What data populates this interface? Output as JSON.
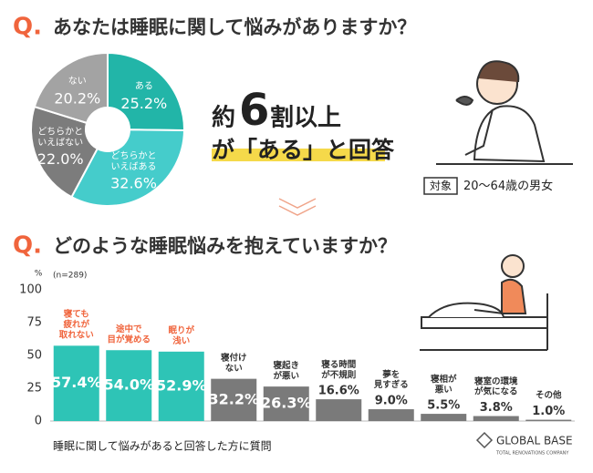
{
  "question1": {
    "mark": "Q.",
    "text": "あなたは睡眠に関して悩みがありますか？"
  },
  "headline": {
    "prefix": "約",
    "number": "6",
    "suffix": "割以上",
    "line2": "が「ある」と回答"
  },
  "target": {
    "tag": "対象",
    "text": "20～64歳の男女"
  },
  "question2": {
    "mark": "Q.",
    "text": "どのような睡眠悩みを抱えていますか？"
  },
  "chart_data": [
    {
      "type": "pie",
      "categories": [
        "ある",
        "どちらかと\nいえばある",
        "どちらかと\nいえばない",
        "ない"
      ],
      "values": [
        25.2,
        32.6,
        22.0,
        20.2
      ],
      "value_labels": [
        "25.2%",
        "32.6%",
        "22.0%",
        "20.2%"
      ],
      "colors": [
        "#22b5a8",
        "#45cccb",
        "#7c7c7c",
        "#a3a3a3"
      ]
    },
    {
      "type": "bar",
      "y_unit": "%",
      "note": "(n=289)",
      "categories": [
        "寝ても\n疲れが\n取れない",
        "途中で\n目が覚める",
        "眠りが\n浅い",
        "寝付け\nない",
        "寝起き\nが悪い",
        "寝る時間\nが不規則",
        "夢を\n見すぎる",
        "寝相が\n悪い",
        "寝室の環境\nが気になる",
        "その他"
      ],
      "values": [
        57.4,
        54.0,
        52.9,
        32.2,
        26.3,
        16.6,
        9.0,
        5.5,
        3.8,
        1.0
      ],
      "value_labels": [
        "57.4%",
        "54.0%",
        "52.9%",
        "32.2%",
        "26.3%",
        "16.6%",
        "9.0%",
        "5.5%",
        "3.8%",
        "1.0%"
      ],
      "colors": [
        "#2ec4b6",
        "#2ec4b6",
        "#2ec4b6",
        "#7a7a7a",
        "#7a7a7a",
        "#7a7a7a",
        "#7a7a7a",
        "#7a7a7a",
        "#7a7a7a",
        "#7a7a7a"
      ],
      "label_colors": [
        "#f0643c",
        "#f0643c",
        "#f0643c",
        "#333333",
        "#333333",
        "#333333",
        "#333333",
        "#333333",
        "#333333",
        "#333333"
      ],
      "ylim": [
        0,
        100
      ],
      "yticks": [
        0,
        25,
        50,
        75,
        100
      ]
    }
  ],
  "footnote": "睡眠に関して悩みがあると回答した方に質問",
  "logo": {
    "name": "GLOBAL BASE",
    "tagline": "TOTAL RENOVATIONS COMPANY"
  }
}
